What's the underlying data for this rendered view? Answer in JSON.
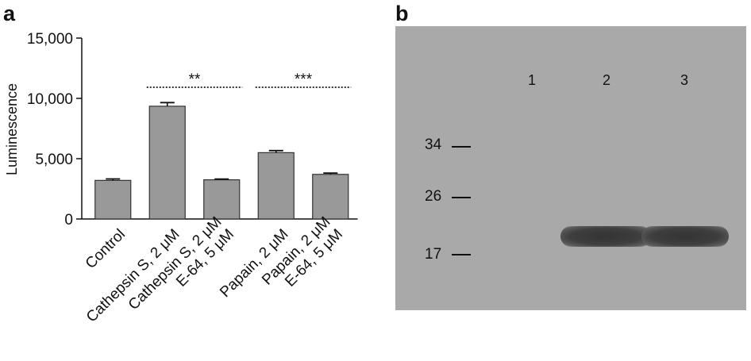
{
  "panels": {
    "a": {
      "letter": "a"
    },
    "b": {
      "letter": "b"
    }
  },
  "chart_data": {
    "type": "bar",
    "title": "",
    "xlabel": "",
    "ylabel": "Luminescence",
    "ylim": [
      0,
      15000
    ],
    "yticks": [
      "0",
      "5,000",
      "10,000",
      "15,000"
    ],
    "ytick_values": [
      0,
      5000,
      10000,
      15000
    ],
    "grid": false,
    "bar_color": "#999999",
    "categories": [
      [
        "Control"
      ],
      [
        "Cathepsin S, 2 μM"
      ],
      [
        "Cathepsin S, 2 μM",
        "E-64, 5 μM"
      ],
      [
        "Papain, 2 μM"
      ],
      [
        "Papain, 2 μM",
        "E-64, 5 μM"
      ]
    ],
    "values": [
      3200,
      9350,
      3250,
      5500,
      3700
    ],
    "errors": [
      120,
      300,
      60,
      170,
      110
    ],
    "significance": [
      {
        "from": 1,
        "to": 2,
        "label": "**"
      },
      {
        "from": 3,
        "to": 4,
        "label": "***"
      }
    ]
  },
  "blot": {
    "lanes": [
      "1",
      "2",
      "3"
    ],
    "markers": [
      "34",
      "26",
      "17"
    ],
    "band_color": "#353535",
    "background_color": "#a9a9a9"
  }
}
